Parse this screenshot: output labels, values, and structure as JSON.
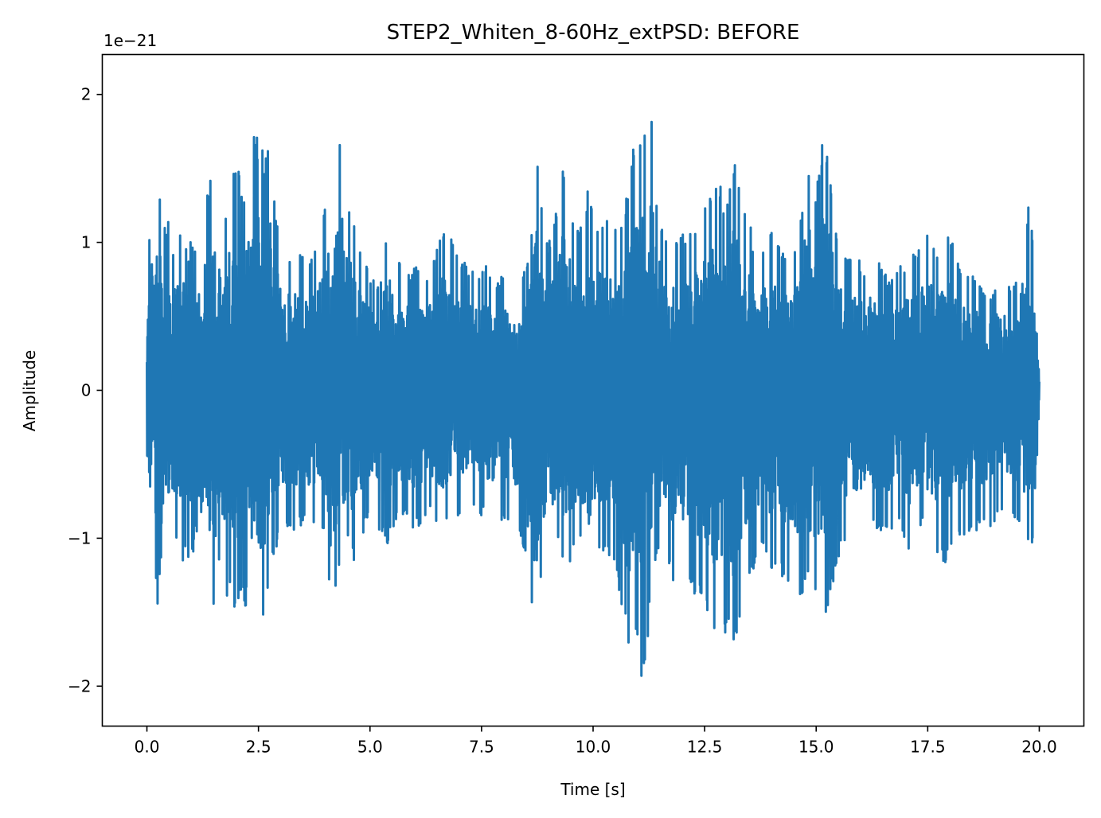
{
  "chart_data": {
    "type": "line",
    "title": "STEP2_Whiten_8-60Hz_extPSD: BEFORE",
    "xlabel": "Time [s]",
    "ylabel": "Amplitude",
    "y_offset_label": "1e−21",
    "xlim": [
      -1.0,
      21.0
    ],
    "ylim": [
      -2.27,
      2.27
    ],
    "x_ticks": [
      0.0,
      2.5,
      5.0,
      7.5,
      10.0,
      12.5,
      15.0,
      17.5,
      20.0
    ],
    "x_tick_labels": [
      "0.0",
      "2.5",
      "5.0",
      "7.5",
      "10.0",
      "12.5",
      "15.0",
      "17.5",
      "20.0"
    ],
    "y_ticks": [
      -2,
      -1,
      0,
      1,
      2
    ],
    "y_tick_labels": [
      "−2",
      "−1",
      "0",
      "1",
      "2"
    ],
    "grid": false,
    "series": [
      {
        "color": "#1f77b4",
        "x": [
          0.0,
          0.1,
          0.15,
          0.18,
          0.2,
          0.25,
          0.3,
          0.33,
          0.4,
          0.5,
          0.6,
          0.7,
          0.8,
          0.9,
          1.0,
          1.1,
          1.2,
          1.35,
          1.5,
          1.65,
          1.8,
          1.9,
          2.0,
          2.1,
          2.2,
          2.3,
          2.4,
          2.55,
          2.65,
          2.75,
          2.85,
          3.0,
          3.2,
          3.4,
          3.6,
          3.8,
          4.0,
          4.1,
          4.15,
          4.2,
          4.25,
          4.3,
          4.4,
          4.5,
          4.6,
          4.7,
          4.8,
          5.0,
          5.2,
          5.4,
          5.6,
          5.8,
          6.0,
          6.2,
          6.4,
          6.6,
          6.8,
          7.0,
          7.2,
          7.4,
          7.6,
          7.8,
          8.0,
          8.2,
          8.4,
          8.5,
          8.6,
          8.7,
          8.75,
          8.8,
          8.9,
          9.0,
          9.1,
          9.2,
          9.3,
          9.5,
          9.7,
          9.9,
          10.1,
          10.3,
          10.5,
          10.7,
          10.85,
          11.0,
          11.1,
          11.15,
          11.2,
          11.25,
          11.3,
          11.4,
          11.6,
          11.8,
          12.0,
          12.2,
          12.4,
          12.6,
          12.8,
          13.0,
          13.15,
          13.3,
          13.45,
          13.6,
          13.8,
          14.0,
          14.2,
          14.4,
          14.6,
          14.8,
          15.0,
          15.15,
          15.3,
          15.5,
          15.7,
          15.9,
          16.1,
          16.3,
          16.5,
          16.7,
          16.9,
          17.1,
          17.3,
          17.5,
          17.7,
          17.9,
          18.1,
          18.3,
          18.5,
          18.7,
          18.9,
          19.1,
          19.3,
          19.5,
          19.65,
          19.8,
          19.9,
          20.0
        ],
        "y_max": [
          0.6,
          1.45,
          1.0,
          1.3,
          1.45,
          1.2,
          1.45,
          1.1,
          1.15,
          1.15,
          0.95,
          1.1,
          1.15,
          0.9,
          1.05,
          1.0,
          1.05,
          1.4,
          1.5,
          1.1,
          1.25,
          1.5,
          1.6,
          1.4,
          1.4,
          1.6,
          1.75,
          1.7,
          1.6,
          1.75,
          1.35,
          1.0,
          0.95,
          0.95,
          0.85,
          1.0,
          1.3,
          1.5,
          1.3,
          1.45,
          1.8,
          1.7,
          1.7,
          1.2,
          1.3,
          1.0,
          1.0,
          0.8,
          0.7,
          1.15,
          0.9,
          0.8,
          0.85,
          0.8,
          0.85,
          1.1,
          1.05,
          0.9,
          0.85,
          0.8,
          0.85,
          0.75,
          0.8,
          0.65,
          0.7,
          0.9,
          1.0,
          1.55,
          1.6,
          1.35,
          1.1,
          1.0,
          1.1,
          1.3,
          1.6,
          1.25,
          1.1,
          1.4,
          1.15,
          1.15,
          1.1,
          1.2,
          1.65,
          1.85,
          1.75,
          1.85,
          1.25,
          1.35,
          2.05,
          1.4,
          1.05,
          1.0,
          1.1,
          1.1,
          1.2,
          1.4,
          1.45,
          1.25,
          1.55,
          1.45,
          1.25,
          1.0,
          0.95,
          1.1,
          1.0,
          0.9,
          1.1,
          1.6,
          1.4,
          1.7,
          1.55,
          1.0,
          0.95,
          0.9,
          0.85,
          0.95,
          0.8,
          0.75,
          0.85,
          0.9,
          0.95,
          1.1,
          0.9,
          1.15,
          0.95,
          0.8,
          0.85,
          0.7,
          0.65,
          0.8,
          0.7,
          0.75,
          1.1,
          1.3,
          0.9,
          0.3
        ],
        "y_min": [
          -0.6,
          -1.2,
          -0.8,
          -1.45,
          -1.3,
          -1.55,
          -1.1,
          -1.3,
          -1.0,
          -1.0,
          -1.0,
          -1.05,
          -1.15,
          -1.15,
          -1.2,
          -1.0,
          -1.2,
          -1.3,
          -1.5,
          -1.15,
          -1.45,
          -1.4,
          -1.55,
          -1.4,
          -1.5,
          -1.4,
          -1.55,
          -1.6,
          -1.5,
          -1.3,
          -1.1,
          -1.0,
          -0.95,
          -0.95,
          -0.9,
          -1.0,
          -1.0,
          -1.5,
          -1.8,
          -1.55,
          -1.4,
          -1.2,
          -1.1,
          -1.0,
          -1.2,
          -1.1,
          -1.0,
          -0.85,
          -0.95,
          -1.05,
          -0.9,
          -0.85,
          -0.95,
          -0.9,
          -0.85,
          -0.95,
          -0.9,
          -0.85,
          -0.75,
          -0.85,
          -0.85,
          -0.9,
          -0.9,
          -0.9,
          -1.0,
          -1.2,
          -1.5,
          -1.75,
          -1.8,
          -1.4,
          -1.25,
          -1.1,
          -1.2,
          -1.0,
          -1.25,
          -1.15,
          -1.05,
          -1.3,
          -1.1,
          -1.1,
          -1.2,
          -1.6,
          -1.8,
          -1.75,
          -2.05,
          -1.9,
          -1.75,
          -1.6,
          -1.4,
          -1.2,
          -1.1,
          -1.3,
          -1.3,
          -1.35,
          -1.45,
          -1.6,
          -1.75,
          -1.65,
          -1.8,
          -1.5,
          -1.3,
          -1.2,
          -1.1,
          -1.2,
          -1.25,
          -1.3,
          -1.45,
          -1.35,
          -1.45,
          -1.6,
          -1.4,
          -1.15,
          -1.0,
          -1.0,
          -0.95,
          -0.95,
          -1.0,
          -1.0,
          -0.95,
          -1.1,
          -0.9,
          -1.0,
          -1.1,
          -1.2,
          -1.1,
          -1.0,
          -1.0,
          -0.9,
          -0.95,
          -0.85,
          -0.8,
          -0.9,
          -1.0,
          -1.1,
          -1.0,
          -0.3
        ]
      }
    ]
  }
}
